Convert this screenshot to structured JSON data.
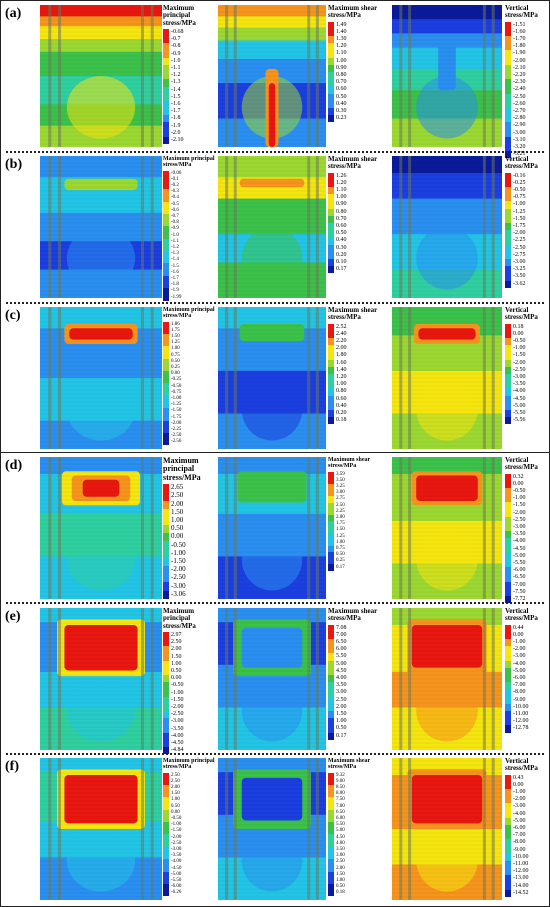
{
  "panels": [
    {
      "label": "(a)",
      "maps": [
        {
          "title": "Maximum principal stress/MPa",
          "ticks": [
            "-0.68",
            "-0.7",
            "-0.8",
            "-0.9",
            "-1.0",
            "-1.1",
            "-1.2",
            "-1.3",
            "-1.4",
            "-1.5",
            "-1.6",
            "-1.7",
            "-1.8",
            "-1.9",
            "-2.0",
            "-2.10"
          ]
        },
        {
          "title": "Maximum shear stress/MPa",
          "ticks": [
            "1.49",
            "1.40",
            "1.30",
            "1.20",
            "1.10",
            "1.00",
            "0.90",
            "0.80",
            "0.70",
            "0.60",
            "0.50",
            "0.40",
            "0.30",
            "0.23"
          ]
        },
        {
          "title": "Vertical stress/MPa",
          "ticks": [
            "-1.51",
            "-1.60",
            "-1.70",
            "-1.80",
            "-1.90",
            "-2.00",
            "-2.10",
            "-2.20",
            "-2.30",
            "-2.40",
            "-2.50",
            "-2.60",
            "-2.70",
            "-2.80",
            "-2.90",
            "-3.00",
            "-3.10",
            "-3.20",
            "-3.21"
          ]
        }
      ]
    },
    {
      "label": "(b)",
      "maps": [
        {
          "title": "Maximum principal stress/MPa",
          "ticks": [
            "-0.06",
            "-0.1",
            "-0.2",
            "-0.3",
            "-0.4",
            "-0.5",
            "-0.6",
            "-0.7",
            "-0.8",
            "-0.9",
            "-1.0",
            "-1.1",
            "-1.2",
            "-1.3",
            "-1.4",
            "-1.5",
            "-1.6",
            "-1.7",
            "-1.8",
            "-1.9",
            "-1.99"
          ]
        },
        {
          "title": "Maximum shear stress/MPa",
          "ticks": [
            "1.26",
            "1.20",
            "1.10",
            "1.00",
            "0.90",
            "0.80",
            "0.70",
            "0.60",
            "0.50",
            "0.40",
            "0.30",
            "0.20",
            "0.10",
            "0.17"
          ]
        },
        {
          "title": "Vertical stress/MPa",
          "ticks": [
            "-0.16",
            "-0.25",
            "-0.50",
            "-0.75",
            "-1.00",
            "-1.25",
            "-1.50",
            "-1.75",
            "-2.00",
            "-2.25",
            "-2.50",
            "-2.75",
            "-3.00",
            "-3.25",
            "-3.50",
            "-3.62"
          ]
        }
      ]
    },
    {
      "label": "(c)",
      "maps": [
        {
          "title": "Maximum principal stress/MPa",
          "ticks": [
            "1.86",
            "1.75",
            "1.50",
            "1.25",
            "1.00",
            "0.75",
            "0.50",
            "0.25",
            "0.00",
            "-0.25",
            "-0.50",
            "-0.75",
            "-1.00",
            "-1.25",
            "-1.50",
            "-1.75",
            "-2.00",
            "-2.25",
            "-2.50",
            "-2.56"
          ]
        },
        {
          "title": "Maximum shear stress/MPa",
          "ticks": [
            "2.52",
            "2.40",
            "2.20",
            "2.00",
            "1.80",
            "1.60",
            "1.40",
            "1.20",
            "1.00",
            "0.80",
            "0.60",
            "0.40",
            "0.20",
            "0.18"
          ]
        },
        {
          "title": "Vertical stress/MPa",
          "ticks": [
            "0.18",
            "0.00",
            "-0.50",
            "-1.00",
            "-1.50",
            "-2.00",
            "-2.50",
            "-3.00",
            "-3.50",
            "-4.00",
            "-4.50",
            "-5.00",
            "-5.50",
            "-5.56"
          ]
        }
      ]
    },
    {
      "label": "(d)",
      "maps": [
        {
          "title": "Maximum principal stress/MPa",
          "ticks": [
            "2.65",
            "2.50",
            "2.00",
            "1.50",
            "1.00",
            "0.50",
            "0.00",
            "-0.50",
            "-1.00",
            "-1.50",
            "-2.00",
            "-2.50",
            "-3.00",
            "-3.06"
          ]
        },
        {
          "title": "Maximum shear stress/MPa",
          "ticks": [
            "3.59",
            "3.50",
            "3.25",
            "3.00",
            "2.75",
            "2.50",
            "2.25",
            "2.00",
            "1.75",
            "1.50",
            "1.25",
            "1.00",
            "0.75",
            "0.50",
            "0.25",
            "0.17"
          ]
        },
        {
          "title": "Vertical stress/MPa",
          "ticks": [
            "0.32",
            "0.00",
            "-0.50",
            "-1.00",
            "-1.50",
            "-2.00",
            "-2.50",
            "-3.00",
            "-3.50",
            "-4.00",
            "-4.50",
            "-5.00",
            "-5.50",
            "-6.00",
            "-6.50",
            "-7.00",
            "-7.50",
            "-7.72"
          ]
        }
      ]
    },
    {
      "label": "(e)",
      "maps": [
        {
          "title": "Maximum principal stress/MPa",
          "ticks": [
            "2.97",
            "2.50",
            "2.00",
            "1.50",
            "1.00",
            "0.50",
            "0.00",
            "-0.50",
            "-1.00",
            "-1.50",
            "-2.00",
            "-2.50",
            "-3.00",
            "-3.50",
            "-4.00",
            "-4.50",
            "-4.84"
          ]
        },
        {
          "title": "Maximum shear stress/MPa",
          "ticks": [
            "7.08",
            "7.00",
            "6.50",
            "6.00",
            "5.50",
            "5.00",
            "4.50",
            "4.00",
            "3.50",
            "3.00",
            "2.50",
            "2.00",
            "1.50",
            "1.00",
            "0.50",
            "0.17"
          ]
        },
        {
          "title": "Vertical stress/MPa",
          "ticks": [
            "0.44",
            "0.00",
            "-1.00",
            "-2.00",
            "-3.00",
            "-4.00",
            "-5.00",
            "-6.00",
            "-7.00",
            "-8.00",
            "-9.00",
            "-10.00",
            "-11.00",
            "-12.00",
            "-12.78"
          ]
        }
      ]
    },
    {
      "label": "(f)",
      "maps": [
        {
          "title": "Maximum principal stress/MPa",
          "ticks": [
            "2.50",
            "2.50",
            "2.00",
            "1.50",
            "1.00",
            "0.50",
            "0.00",
            "-0.50",
            "-1.00",
            "-1.50",
            "-2.00",
            "-2.50",
            "-3.00",
            "-3.50",
            "-4.00",
            "-4.50",
            "-5.00",
            "-5.50",
            "-6.00",
            "-6.26"
          ]
        },
        {
          "title": "Maximum shear stress/MPa",
          "ticks": [
            "9.32",
            "9.00",
            "8.50",
            "8.00",
            "7.50",
            "7.00",
            "6.50",
            "6.00",
            "5.50",
            "5.00",
            "4.50",
            "4.00",
            "3.50",
            "3.00",
            "2.50",
            "2.00",
            "1.50",
            "1.00",
            "0.50",
            "0.18"
          ]
        },
        {
          "title": "Vertical stress/MPa",
          "ticks": [
            "0.43",
            "0.00",
            "-1.00",
            "-2.00",
            "-3.00",
            "-4.00",
            "-5.00",
            "-6.00",
            "-7.00",
            "-8.00",
            "-9.00",
            "-10.00",
            "-11.00",
            "-12.00",
            "-13.00",
            "-14.00",
            "-14.52"
          ]
        }
      ]
    }
  ],
  "colors": {
    "red": "#e8170f",
    "orange": "#f7941d",
    "yellow": "#f5e60f",
    "lime": "#9bd832",
    "green": "#3cc24a",
    "teal": "#2fd0a0",
    "cyan": "#22c5e6",
    "sky": "#2a8ff0",
    "blue": "#1b3fe0",
    "navy": "#0a1a9a"
  }
}
